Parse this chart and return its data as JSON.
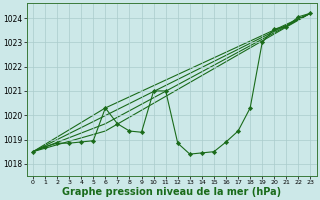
{
  "background_color": "#cce8e8",
  "grid_color": "#aacccc",
  "line_color": "#1a6b1a",
  "marker_color": "#1a6b1a",
  "xlabel": "Graphe pression niveau de la mer (hPa)",
  "xlabel_fontsize": 7,
  "ylabel_ticks": [
    1018,
    1019,
    1020,
    1021,
    1022,
    1023,
    1024
  ],
  "xlim": [
    -0.5,
    23.5
  ],
  "ylim": [
    1017.5,
    1024.6
  ],
  "x_ticks": [
    0,
    1,
    2,
    3,
    4,
    5,
    6,
    7,
    8,
    9,
    10,
    11,
    12,
    13,
    14,
    15,
    16,
    17,
    18,
    19,
    20,
    21,
    22,
    23
  ],
  "series1_x": [
    0,
    1,
    2,
    3,
    4,
    5,
    6,
    7,
    8,
    9,
    10,
    11,
    12,
    13,
    14,
    15,
    16,
    17,
    18,
    19,
    20,
    21,
    22,
    23
  ],
  "series1_y": [
    1018.5,
    1018.7,
    1018.85,
    1018.85,
    1018.9,
    1018.95,
    1020.3,
    1019.65,
    1019.35,
    1019.3,
    1021.0,
    1021.0,
    1018.85,
    1018.4,
    1018.45,
    1018.5,
    1018.9,
    1019.35,
    1020.3,
    1023.0,
    1023.55,
    1023.65,
    1024.05,
    1024.2
  ],
  "line2_x": [
    0,
    23
  ],
  "line2_y": [
    1018.5,
    1024.2
  ],
  "line3_x": [
    0,
    6,
    23
  ],
  "line3_y": [
    1018.5,
    1020.3,
    1024.2
  ],
  "line4_x": [
    0,
    6,
    23
  ],
  "line4_y": [
    1018.5,
    1019.65,
    1024.2
  ],
  "line5_x": [
    0,
    6,
    23
  ],
  "line5_y": [
    1018.5,
    1019.35,
    1024.2
  ]
}
